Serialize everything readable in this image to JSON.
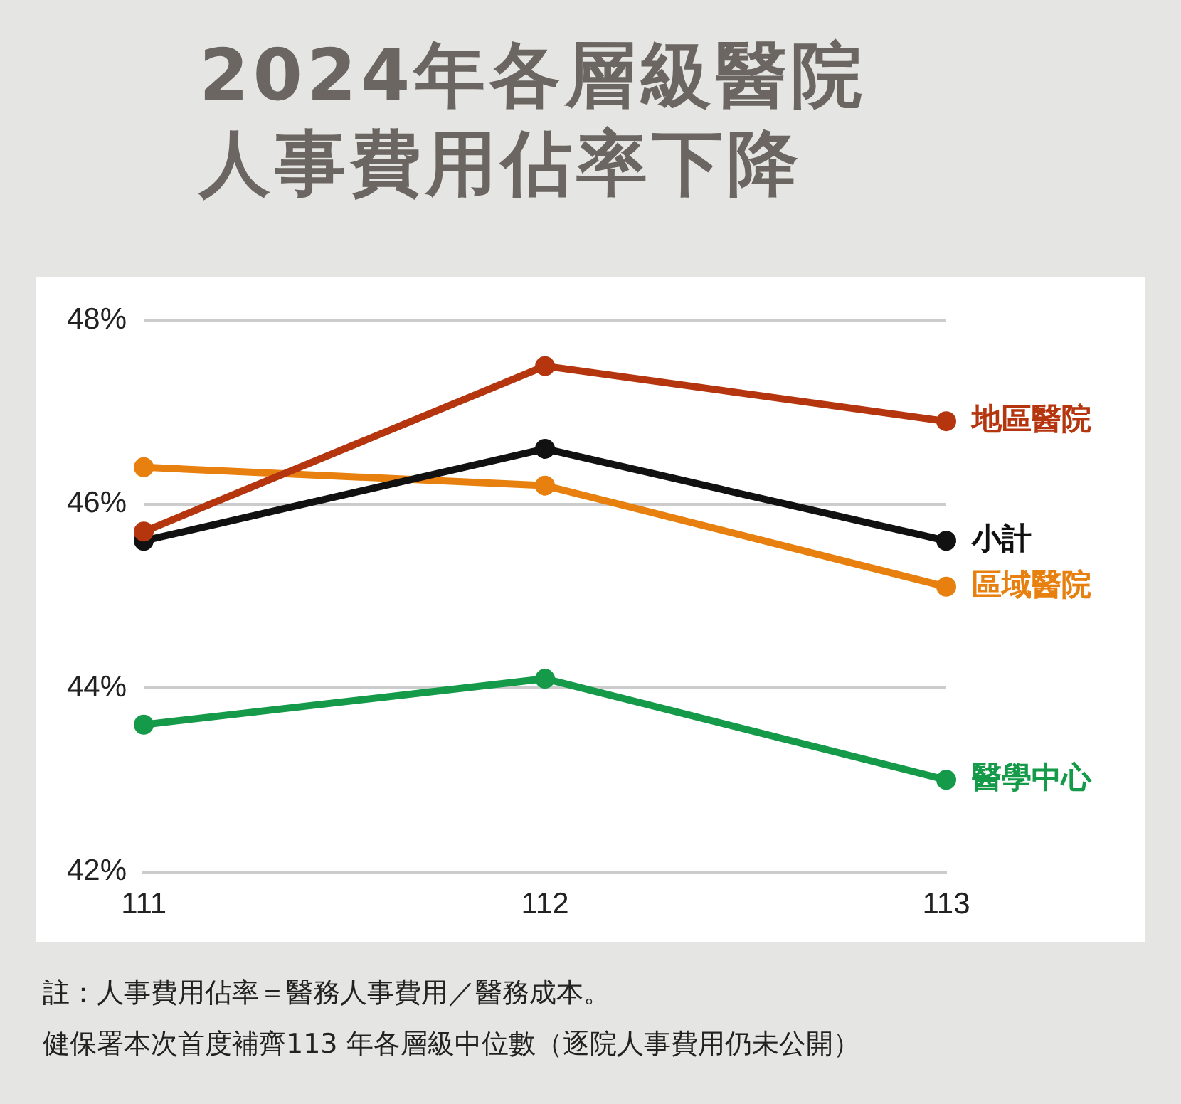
{
  "chart_data": {
    "type": "line",
    "title": "2024年各層級醫院人事費用佔率下降",
    "categories": [
      "111",
      "112",
      "113"
    ],
    "series": [
      {
        "name": "地區醫院",
        "color": "#b5350f",
        "values": [
          45.7,
          47.5,
          46.9
        ]
      },
      {
        "name": "小計",
        "color": "#111111",
        "values": [
          45.6,
          46.6,
          45.6
        ]
      },
      {
        "name": "區域醫院",
        "color": "#e8800f",
        "values": [
          46.4,
          46.2,
          45.1
        ]
      },
      {
        "name": "醫學中心",
        "color": "#149a48",
        "values": [
          43.6,
          44.1,
          43.0
        ]
      }
    ],
    "ylim": [
      42,
      48
    ],
    "yticks": [
      {
        "value": 42,
        "label": "42%"
      },
      {
        "value": 44,
        "label": "44%"
      },
      {
        "value": 46,
        "label": "46%"
      },
      {
        "value": 48,
        "label": "48%"
      }
    ],
    "grid": "y",
    "legend": false,
    "marker": "circle",
    "line_style": "solid",
    "annotations": [
      "註：人事費用佔率＝醫務人事費用／醫務成本。",
      "健保署本次首度補齊113 年各層級中位數（逐院人事費用仍未公開）"
    ]
  }
}
